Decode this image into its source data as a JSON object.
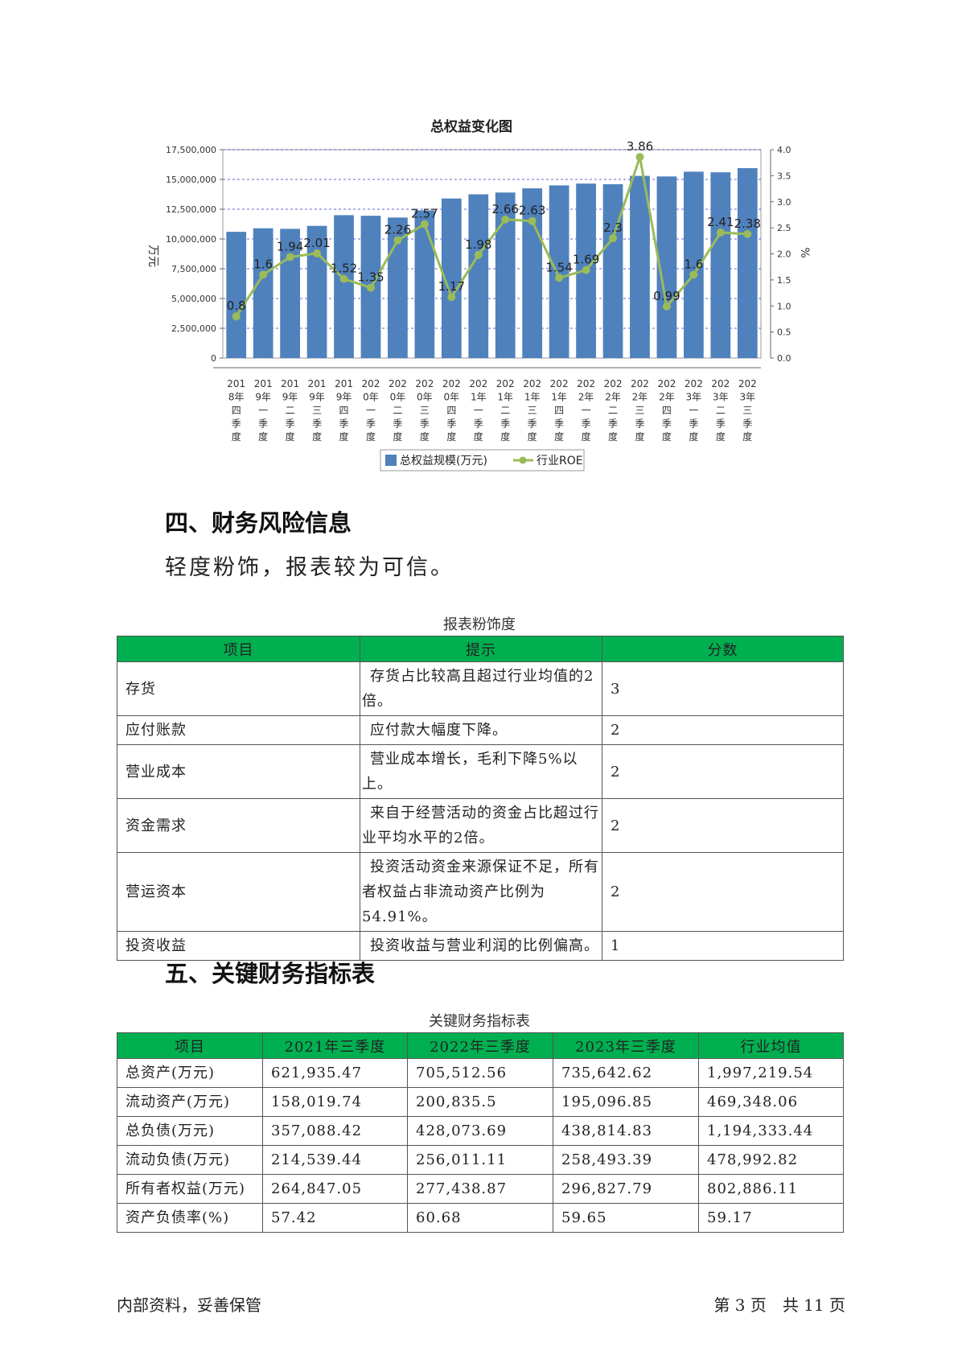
{
  "chart_data": {
    "type": "bar",
    "title": "总权益变化图",
    "ylabel": "万元",
    "y2label": "%",
    "ylim": [
      0,
      17500000
    ],
    "y2lim": [
      0,
      4.0
    ],
    "yticks": [
      "0",
      "2,500,000",
      "5,000,000",
      "7,500,000",
      "10,000,000",
      "12,500,000",
      "15,000,000",
      "17,500,000"
    ],
    "y2ticks": [
      "0.0",
      "0.5",
      "1.0",
      "1.5",
      "2.0",
      "2.5",
      "3.0",
      "3.5",
      "4.0"
    ],
    "categories": [
      "2018年四季度",
      "2019年一季度",
      "2019年二季度",
      "2019年三季度",
      "2019年四季度",
      "2020年一季度",
      "2020年二季度",
      "2020年三季度",
      "2020年四季度",
      "2021年一季度",
      "2021年二季度",
      "2021年三季度",
      "2021年四季度",
      "2022年一季度",
      "2022年二季度",
      "2022年三季度",
      "2022年四季度",
      "2023年一季度",
      "2023年二季度",
      "2023年三季度"
    ],
    "series": [
      {
        "name": "总权益规模(万元)",
        "type": "bar",
        "color": "#4f81bd",
        "values": [
          10600000,
          10900000,
          10850000,
          11100000,
          12000000,
          11950000,
          11800000,
          12400000,
          13400000,
          13750000,
          13900000,
          14250000,
          14500000,
          14650000,
          14600000,
          15300000,
          15250000,
          15650000,
          15600000,
          15950000
        ]
      },
      {
        "name": "行业ROE",
        "type": "line",
        "axis": "right",
        "color": "#9bbb59",
        "values": [
          0.8,
          1.6,
          1.94,
          2.01,
          1.52,
          1.35,
          2.26,
          2.57,
          1.17,
          1.98,
          2.66,
          2.63,
          1.54,
          1.69,
          2.3,
          3.86,
          0.99,
          1.6,
          2.41,
          2.38
        ]
      }
    ],
    "legend": "bottom",
    "grid": true
  },
  "section4": {
    "heading": "四、财务风险信息",
    "summary": "轻度粉饰，报表较为可信。",
    "table_caption": "报表粉饰度",
    "headers": [
      "项目",
      "提示",
      "分数"
    ],
    "rows": [
      {
        "item": "存货",
        "hint": "存货占比较高且超过行业均值的2倍。",
        "score": "3"
      },
      {
        "item": "应付账款",
        "hint": "应付款大幅度下降。",
        "score": "2"
      },
      {
        "item": "营业成本",
        "hint": "营业成本增长，毛利下降5%以上。",
        "score": "2"
      },
      {
        "item": "资金需求",
        "hint": "来自于经营活动的资金占比超过行业平均水平的2倍。",
        "score": "2"
      },
      {
        "item": "营运资本",
        "hint": "投资活动资金来源保证不足，所有者权益占非流动资产比例为54.91%。",
        "score": "2"
      },
      {
        "item": "投资收益",
        "hint": "投资收益与营业利润的比例偏高。",
        "score": "1"
      }
    ]
  },
  "section5": {
    "heading": "五、关键财务指标表",
    "table_caption": "关键财务指标表",
    "headers": [
      "项目",
      "2021年三季度",
      "2022年三季度",
      "2023年三季度",
      "行业均值"
    ],
    "rows": [
      [
        "总资产(万元)",
        "621,935.47",
        "705,512.56",
        "735,642.62",
        "1,997,219.54"
      ],
      [
        "流动资产(万元)",
        "158,019.74",
        "200,835.5",
        "195,096.85",
        "469,348.06"
      ],
      [
        "总负债(万元)",
        "357,088.42",
        "428,073.69",
        "438,814.83",
        "1,194,333.44"
      ],
      [
        "流动负债(万元)",
        "214,539.44",
        "256,011.11",
        "258,493.39",
        "478,992.82"
      ],
      [
        "所有者权益(万元)",
        "264,847.05",
        "277,438.87",
        "296,827.79",
        "802,886.11"
      ],
      [
        "资产负债率(%)",
        "57.42",
        "60.68",
        "59.65",
        "59.17"
      ]
    ]
  },
  "footer": {
    "left": "内部资料，妥善保管",
    "right": "第 3 页　共 11 页"
  }
}
